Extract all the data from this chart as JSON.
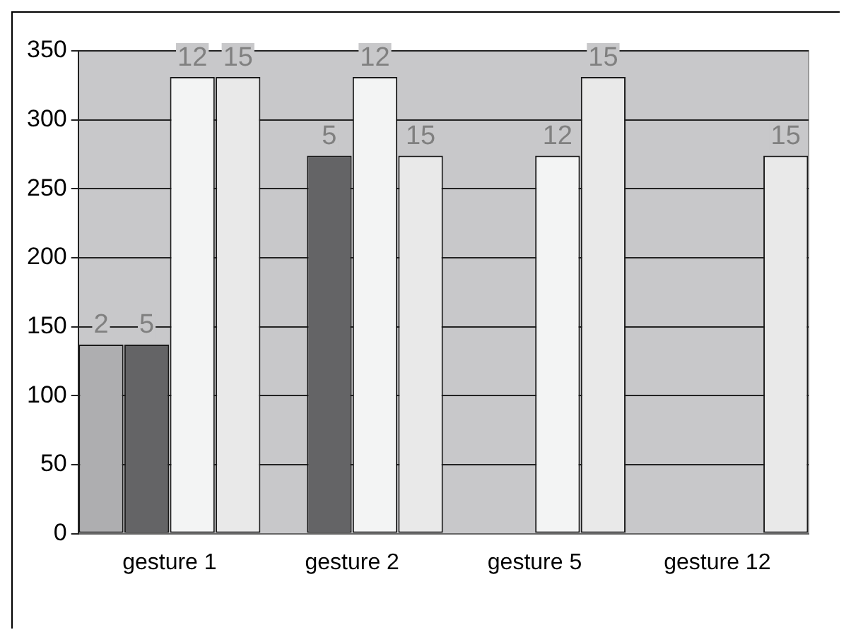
{
  "chart_data": {
    "type": "bar",
    "categories": [
      "gesture 1",
      "gesture 2",
      "gesture 5",
      "gesture 12"
    ],
    "series": [
      {
        "name": "2",
        "color": "#aeaeb0",
        "values": [
          137,
          null,
          null,
          null
        ]
      },
      {
        "name": "5",
        "color": "#646466",
        "values": [
          137,
          274,
          null,
          null
        ]
      },
      {
        "name": "12",
        "color": "#f3f4f4",
        "values": [
          331,
          331,
          274,
          null
        ]
      },
      {
        "name": "15",
        "color": "#e9e9e9",
        "values": [
          331,
          274,
          331,
          274
        ]
      }
    ],
    "ylim": [
      0,
      350
    ],
    "yticks": [
      0,
      50,
      100,
      150,
      200,
      250,
      300,
      350
    ],
    "grid": "y",
    "legend": false
  }
}
